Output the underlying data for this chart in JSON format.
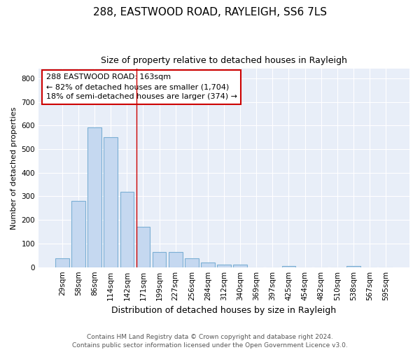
{
  "title1": "288, EASTWOOD ROAD, RAYLEIGH, SS6 7LS",
  "title2": "Size of property relative to detached houses in Rayleigh",
  "xlabel": "Distribution of detached houses by size in Rayleigh",
  "ylabel": "Number of detached properties",
  "categories": [
    "29sqm",
    "58sqm",
    "86sqm",
    "114sqm",
    "142sqm",
    "171sqm",
    "199sqm",
    "227sqm",
    "256sqm",
    "284sqm",
    "312sqm",
    "340sqm",
    "369sqm",
    "397sqm",
    "425sqm",
    "454sqm",
    "482sqm",
    "510sqm",
    "538sqm",
    "567sqm",
    "595sqm"
  ],
  "values": [
    38,
    280,
    592,
    550,
    320,
    170,
    65,
    65,
    38,
    20,
    12,
    12,
    0,
    0,
    5,
    0,
    0,
    0,
    5,
    0,
    0
  ],
  "bar_color": "#c5d8f0",
  "bar_edge_color": "#7bafd4",
  "fig_background_color": "#ffffff",
  "plot_background_color": "#e8eef8",
  "grid_color": "#ffffff",
  "annotation_text": "288 EASTWOOD ROAD: 163sqm\n← 82% of detached houses are smaller (1,704)\n18% of semi-detached houses are larger (374) →",
  "annotation_box_facecolor": "#ffffff",
  "annotation_box_edgecolor": "#cc0000",
  "vline_color": "#cc0000",
  "vline_x": 5,
  "footer": "Contains HM Land Registry data © Crown copyright and database right 2024.\nContains public sector information licensed under the Open Government Licence v3.0.",
  "ylim": [
    0,
    840
  ],
  "yticks": [
    0,
    100,
    200,
    300,
    400,
    500,
    600,
    700,
    800
  ],
  "title1_fontsize": 11,
  "title2_fontsize": 9,
  "ylabel_fontsize": 8,
  "xlabel_fontsize": 9,
  "tick_fontsize": 7.5,
  "footer_fontsize": 6.5,
  "annotation_fontsize": 8
}
